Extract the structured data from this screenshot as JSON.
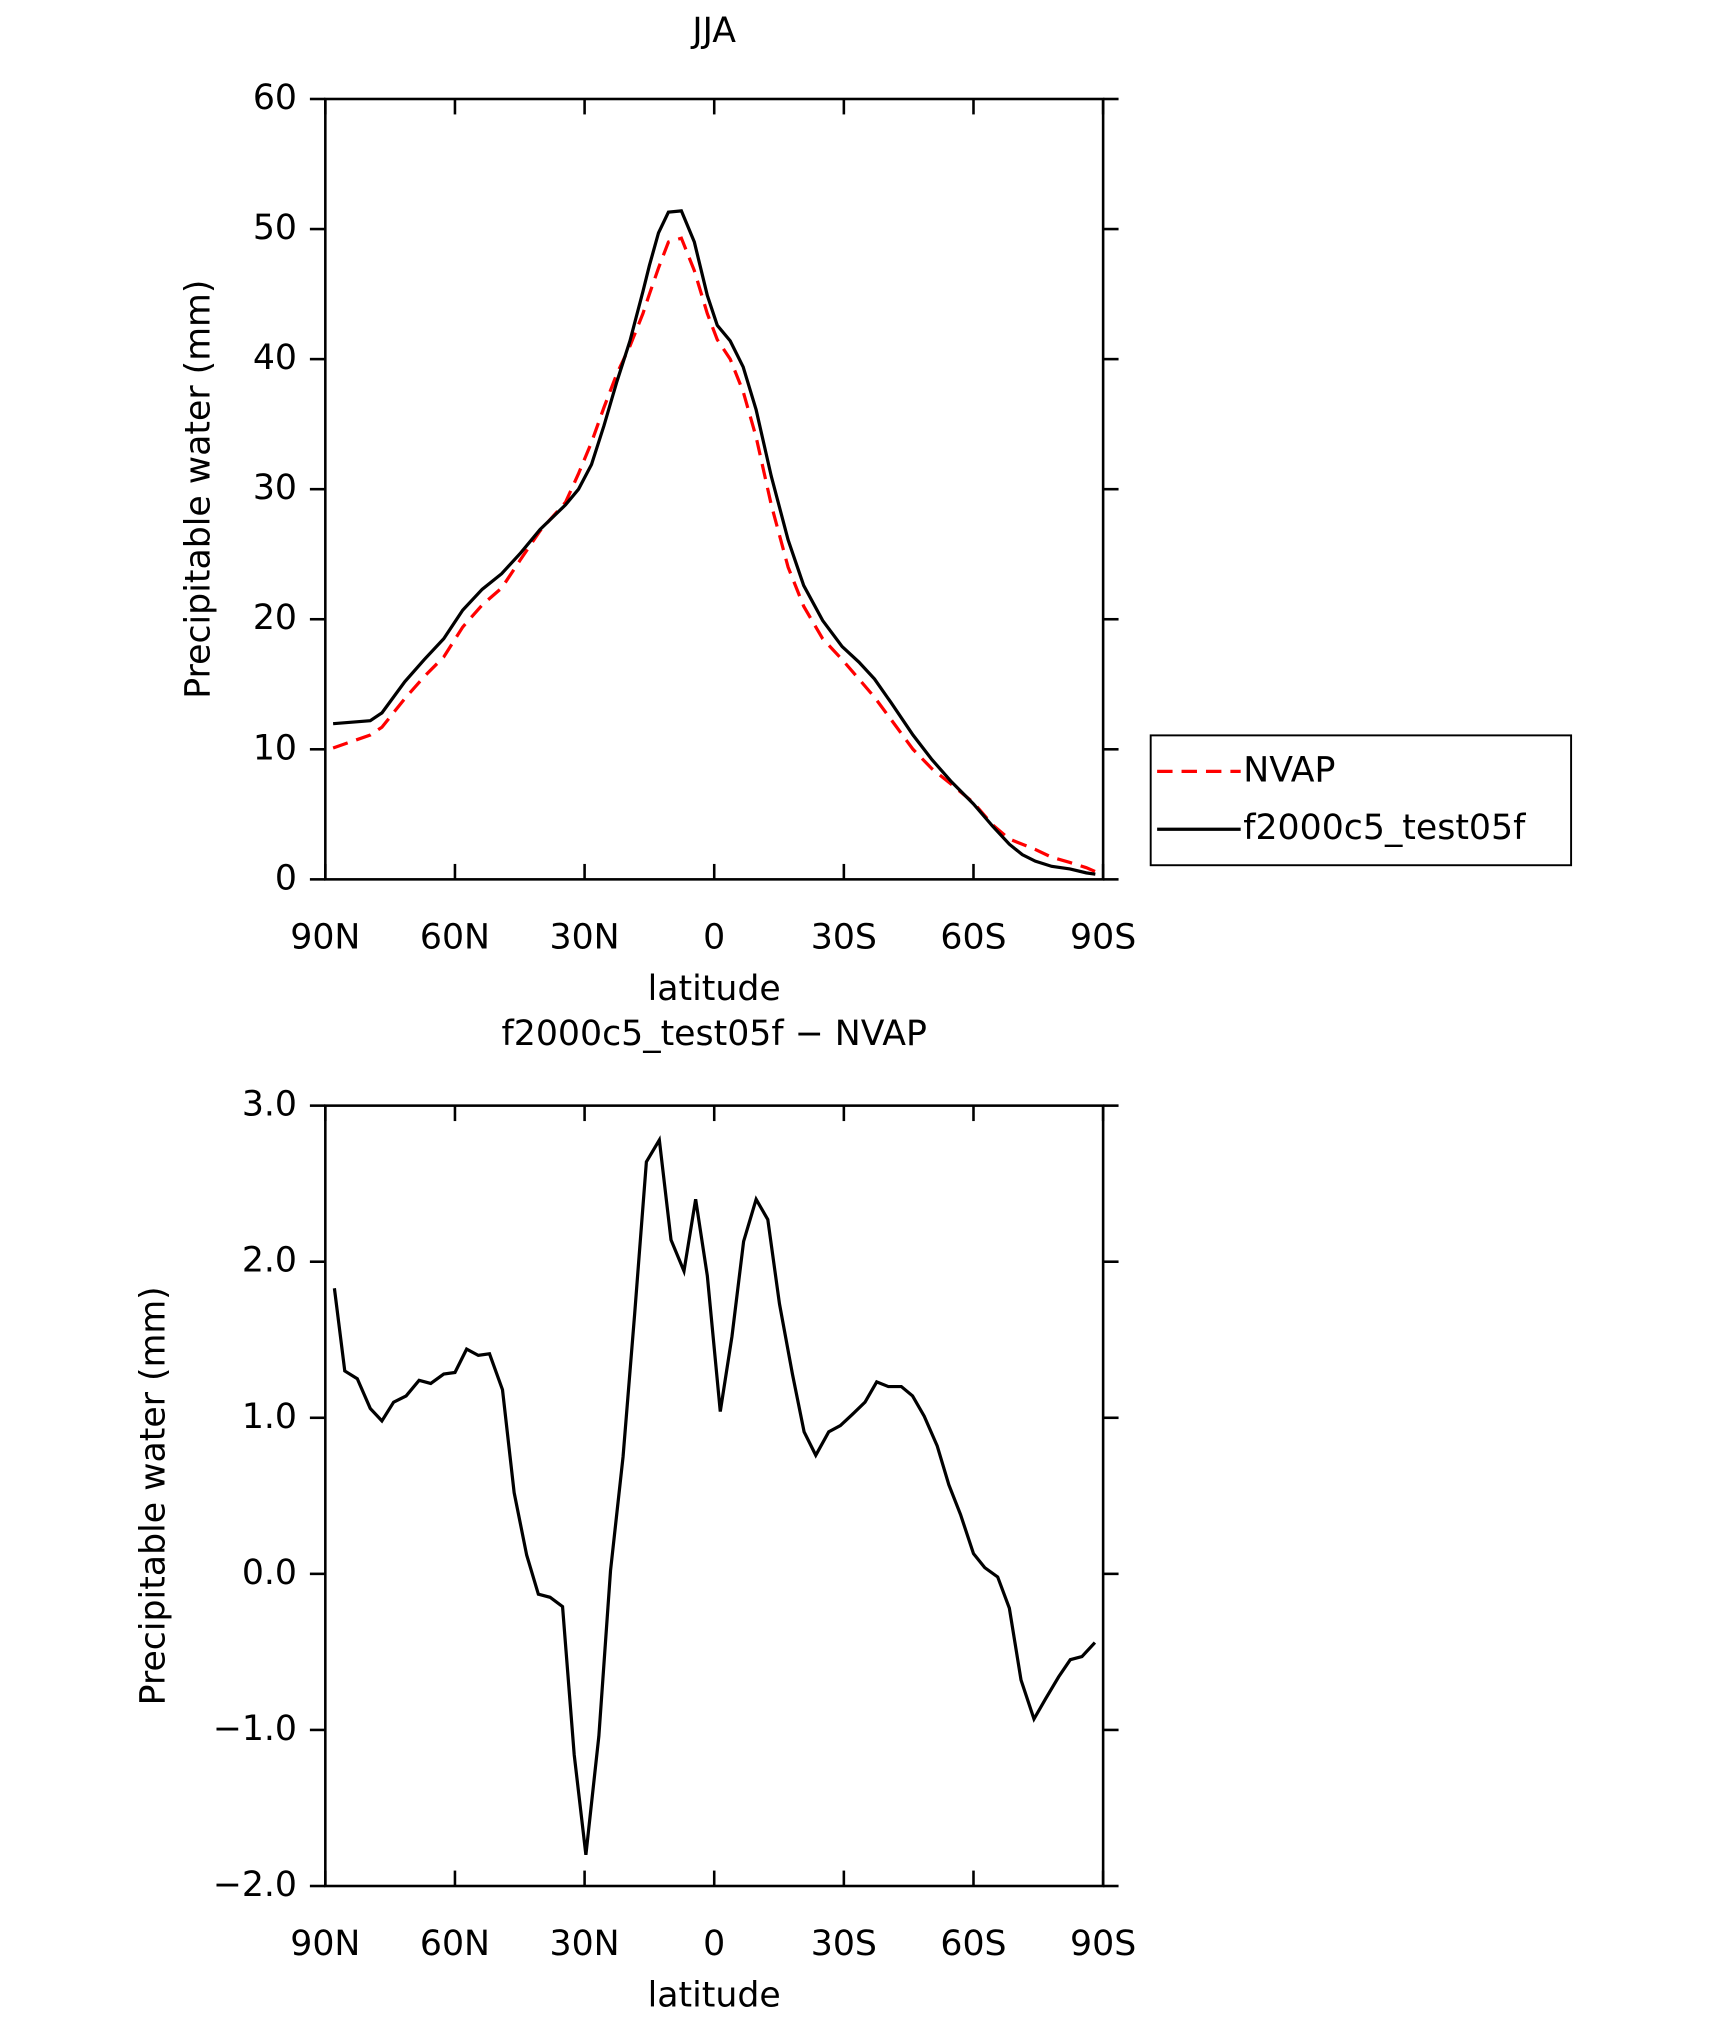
{
  "chart_data": [
    {
      "type": "line",
      "title": "JJA",
      "x_label": "latitude",
      "y_label": "Precipitable water (mm)",
      "x": [
        88.2,
        79.6,
        76.9,
        71.6,
        67.1,
        62.6,
        58.2,
        53.7,
        49.2,
        44.8,
        40.3,
        34.4,
        31.4,
        28.4,
        25.5,
        22.5,
        19.5,
        16.5,
        15.0,
        12.9,
        10.6,
        7.6,
        4.6,
        1.6,
        -0.7,
        -3.7,
        -6.7,
        -9.7,
        -13.2,
        -17.1,
        -20.7,
        -25.1,
        -29.6,
        -33.5,
        -37.1,
        -40.9,
        -46.0,
        -50.4,
        -54.9,
        -60.0,
        -64.4,
        -68.3,
        -71.3,
        -74.3,
        -78.1,
        -82.3,
        -86.1,
        -88.2
      ],
      "series": [
        {
          "name": "NVAP",
          "color": "#ff0000",
          "dashed": true,
          "values": [
            10.1,
            11.1,
            11.7,
            13.9,
            15.6,
            17.1,
            19.4,
            21.1,
            22.4,
            24.6,
            26.8,
            29.0,
            31.2,
            33.6,
            36.3,
            38.9,
            41.0,
            43.5,
            45.0,
            47.0,
            49.0,
            49.3,
            46.8,
            43.5,
            41.5,
            40.0,
            37.5,
            34.0,
            28.8,
            24.0,
            21.0,
            18.5,
            16.9,
            15.4,
            14.0,
            12.3,
            10.0,
            8.5,
            7.3,
            5.9,
            4.2,
            3.1,
            2.7,
            2.3,
            1.7,
            1.3,
            0.9,
            0.6
          ]
        },
        {
          "name": "f2000c5_test05f",
          "color": "#000000",
          "dashed": false,
          "values": [
            11.97,
            12.2,
            12.8,
            15.2,
            16.9,
            18.5,
            20.7,
            22.3,
            23.5,
            25.1,
            26.9,
            28.8,
            30.0,
            31.9,
            34.9,
            38.3,
            41.4,
            45.2,
            47.2,
            49.7,
            51.3,
            51.4,
            49.0,
            44.9,
            42.6,
            41.4,
            39.4,
            36.1,
            31.0,
            26.1,
            22.6,
            19.9,
            17.9,
            16.7,
            15.4,
            13.6,
            11.1,
            9.2,
            7.5,
            5.8,
            4.1,
            2.7,
            1.9,
            1.4,
            1.0,
            0.8,
            0.5,
            0.4
          ]
        }
      ],
      "xlim": [
        90,
        -90
      ],
      "xticks": [
        {
          "value": 90,
          "label": "90N"
        },
        {
          "value": 60,
          "label": "60N"
        },
        {
          "value": 30,
          "label": "30N"
        },
        0,
        {
          "value": -30,
          "label": "30S"
        },
        {
          "value": -60,
          "label": "60S"
        },
        {
          "value": -90,
          "label": "90S"
        }
      ],
      "ylim": [
        0,
        60
      ],
      "yticks": [
        0,
        10,
        20,
        30,
        40,
        50,
        60
      ],
      "legend": "outside-right"
    },
    {
      "type": "line",
      "title": "f2000c5_test05f − NVAP",
      "x_label": "latitude",
      "y_label": "Precipitable water (mm)",
      "x": [
        87.9,
        85.5,
        82.6,
        79.6,
        76.9,
        74.2,
        71.3,
        68.3,
        65.6,
        62.6,
        60.0,
        57.3,
        54.6,
        52.0,
        49.0,
        46.3,
        43.4,
        40.7,
        38.0,
        35.1,
        32.4,
        29.7,
        26.7,
        24.0,
        21.1,
        18.4,
        15.7,
        12.7,
        10.0,
        7.0,
        4.3,
        1.6,
        -1.4,
        -4.1,
        -6.8,
        -9.7,
        -12.4,
        -15.1,
        -18.1,
        -20.8,
        -23.5,
        -26.5,
        -29.2,
        -31.9,
        -34.9,
        -37.6,
        -40.3,
        -43.3,
        -45.9,
        -48.6,
        -51.6,
        -54.3,
        -57.0,
        -60.0,
        -62.6,
        -65.6,
        -68.3,
        -71.0,
        -74.0,
        -76.7,
        -79.7,
        -82.4,
        -85.1,
        -88.1
      ],
      "series": [
        {
          "color": "#000000",
          "dashed": false,
          "values": [
            1.83,
            1.3,
            1.25,
            1.06,
            0.98,
            1.1,
            1.14,
            1.24,
            1.22,
            1.28,
            1.29,
            1.44,
            1.4,
            1.41,
            1.18,
            0.52,
            0.12,
            -0.13,
            -0.15,
            -0.21,
            -1.16,
            -1.8,
            -1.04,
            0.02,
            0.75,
            1.67,
            2.64,
            2.78,
            2.14,
            1.94,
            2.4,
            1.91,
            1.04,
            1.52,
            2.13,
            2.4,
            2.27,
            1.73,
            1.28,
            0.91,
            0.76,
            0.91,
            0.95,
            1.02,
            1.1,
            1.23,
            1.2,
            1.2,
            1.14,
            1.01,
            0.82,
            0.57,
            0.38,
            0.13,
            0.04,
            -0.02,
            -0.22,
            -0.68,
            -0.93,
            -0.8,
            -0.66,
            -0.55,
            -0.53,
            -0.44
          ]
        }
      ],
      "xlim": [
        90,
        -90
      ],
      "xticks": [
        {
          "value": 90,
          "label": "90N"
        },
        {
          "value": 60,
          "label": "60N"
        },
        {
          "value": 30,
          "label": "30N"
        },
        0,
        {
          "value": -30,
          "label": "30S"
        },
        {
          "value": -60,
          "label": "60S"
        },
        {
          "value": -90,
          "label": "90S"
        }
      ],
      "ylim": [
        -2,
        3
      ],
      "yticks": [
        {
          "value": -2,
          "label": "−2.0"
        },
        {
          "value": -1,
          "label": "−1.0"
        },
        {
          "value": 0,
          "label": "0.0"
        },
        {
          "value": 1,
          "label": "1.0"
        },
        {
          "value": 2,
          "label": "2.0"
        },
        {
          "value": 3,
          "label": "3.0"
        }
      ]
    }
  ]
}
